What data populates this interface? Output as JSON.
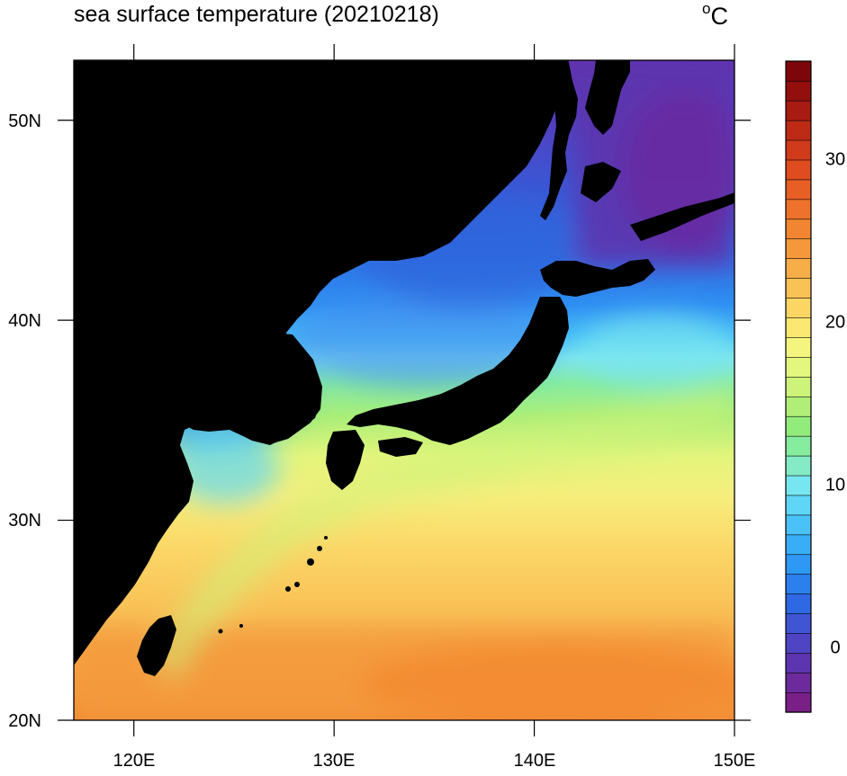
{
  "title": "sea surface temperature (20210218)",
  "unit": "C",
  "unit_prefix": "o",
  "map": {
    "lon_range": [
      117,
      150
    ],
    "lat_range": [
      20,
      53
    ],
    "lon_ticks": [
      "120E",
      "130E",
      "140E",
      "150E"
    ],
    "lat_ticks": [
      "20N",
      "30N",
      "40N",
      "50N"
    ],
    "land_color": "#000000"
  },
  "colorbar": {
    "range": [
      -4,
      36
    ],
    "ticks": [
      "0",
      "10",
      "20",
      "30"
    ],
    "colors": [
      "#7a1f86",
      "#6d2a9c",
      "#5e35b0",
      "#4f44c3",
      "#3f55d4",
      "#2f68e3",
      "#2b80ee",
      "#2f98f4",
      "#39aef7",
      "#4ac2f8",
      "#60d6f7",
      "#78e6f0",
      "#84ebc6",
      "#86ec9e",
      "#92ec7c",
      "#b0ee78",
      "#cdf37a",
      "#e3f77e",
      "#f4f57f",
      "#fbe872",
      "#fbd663",
      "#f9c256",
      "#f7ad48",
      "#f5983c",
      "#f28532",
      "#ee722b",
      "#e85f25",
      "#de4c20",
      "#cf3b1b",
      "#bd2a16",
      "#a81b12",
      "#920f0e",
      "#7c060a"
    ]
  }
}
